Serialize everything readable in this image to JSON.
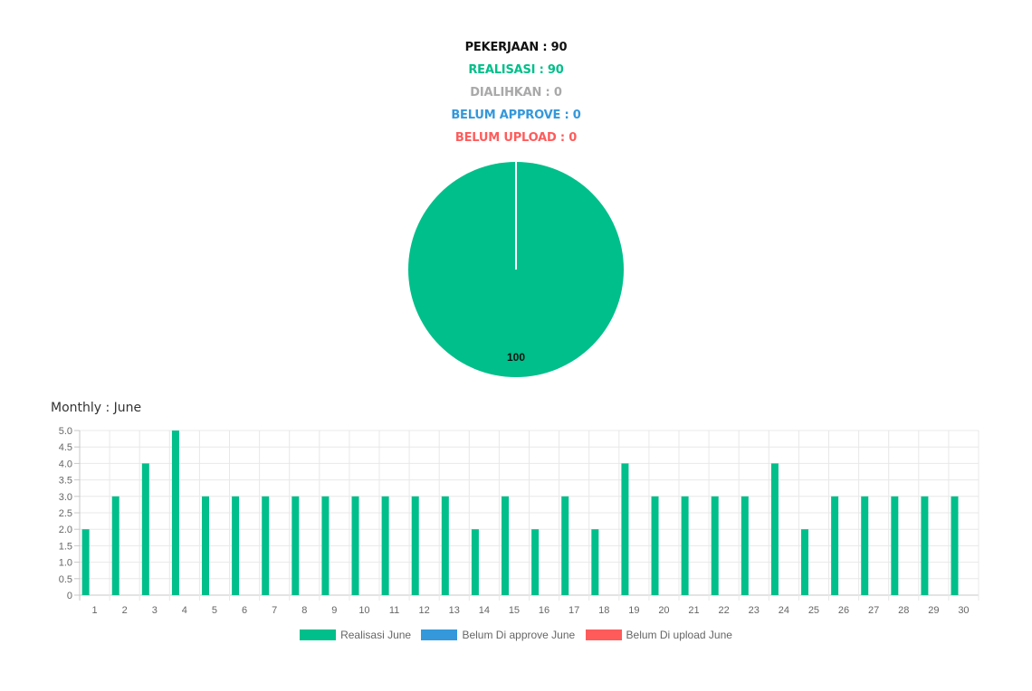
{
  "summary": {
    "pekerjaan": "PEKERJAAN : 90",
    "realisasi": "REALISASI : 90",
    "dialihkan": "DIALIHKAN : 0",
    "belum_approve": "BELUM APPROVE : 0",
    "belum_upload": "BELUM UPLOAD : 0"
  },
  "colors": {
    "realisasi": "#00bf8a",
    "belum_approve": "#3498db",
    "belum_upload": "#ff5b5b",
    "dialihkan": "#a9a9a9"
  },
  "monthly_title": "Monthly : June",
  "legend": [
    {
      "label": "Realisasi June",
      "color": "#00bf8a"
    },
    {
      "label": "Belum Di approve June",
      "color": "#3498db"
    },
    {
      "label": "Belum Di upload June",
      "color": "#ff5b5b"
    }
  ],
  "chart_data": [
    {
      "type": "pie",
      "slices": [
        {
          "name": "Realisasi",
          "value": 100,
          "color": "#00bf8a"
        }
      ],
      "data_labels": [
        "100"
      ]
    },
    {
      "type": "bar",
      "categories": [
        "1",
        "2",
        "3",
        "4",
        "5",
        "6",
        "7",
        "8",
        "9",
        "10",
        "11",
        "12",
        "13",
        "14",
        "15",
        "16",
        "17",
        "18",
        "19",
        "20",
        "21",
        "22",
        "23",
        "24",
        "25",
        "26",
        "27",
        "28",
        "29",
        "30"
      ],
      "series": [
        {
          "name": "Realisasi June",
          "color": "#00bf8a",
          "values": [
            2,
            3,
            4,
            5,
            3,
            3,
            3,
            3,
            3,
            3,
            3,
            3,
            3,
            2,
            3,
            2,
            3,
            2,
            4,
            3,
            3,
            3,
            3,
            4,
            2,
            3,
            3,
            3,
            3,
            3
          ]
        },
        {
          "name": "Belum Di approve June",
          "color": "#3498db",
          "values": [
            0,
            0,
            0,
            0,
            0,
            0,
            0,
            0,
            0,
            0,
            0,
            0,
            0,
            0,
            0,
            0,
            0,
            0,
            0,
            0,
            0,
            0,
            0,
            0,
            0,
            0,
            0,
            0,
            0,
            0
          ]
        },
        {
          "name": "Belum Di upload June",
          "color": "#ff5b5b",
          "values": [
            0,
            0,
            0,
            0,
            0,
            0,
            0,
            0,
            0,
            0,
            0,
            0,
            0,
            0,
            0,
            0,
            0,
            0,
            0,
            0,
            0,
            0,
            0,
            0,
            0,
            0,
            0,
            0,
            0,
            0
          ]
        }
      ],
      "ylim": [
        0,
        5
      ],
      "yticks": [
        "0",
        "0.5",
        "1.0",
        "1.5",
        "2.0",
        "2.5",
        "3.0",
        "3.5",
        "4.0",
        "4.5",
        "5.0"
      ],
      "grid": true,
      "legend_position": "bottom"
    }
  ]
}
